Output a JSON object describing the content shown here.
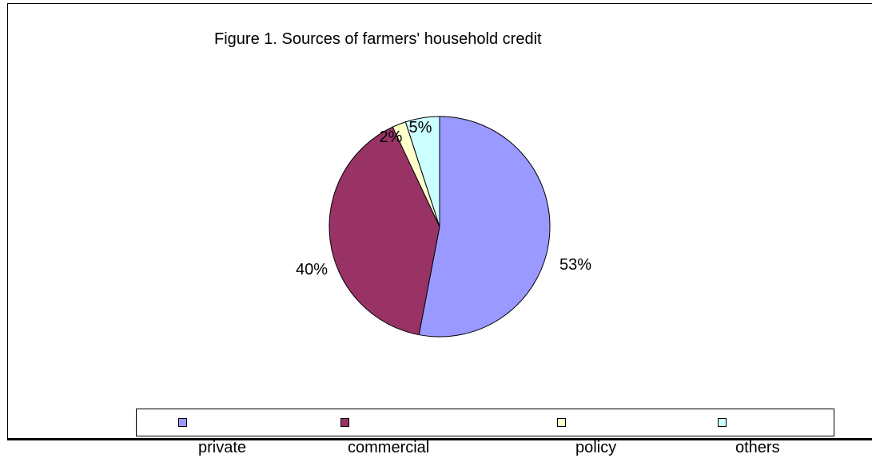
{
  "chart_data": {
    "type": "pie",
    "title": "Figure 1. Sources of farmers' household credit",
    "categories": [
      "private",
      "commercial",
      "policy",
      "others"
    ],
    "values": [
      53,
      40,
      2,
      5
    ],
    "data_labels": [
      "53%",
      "40%",
      "2%",
      "5%"
    ],
    "colors": [
      "#9999ff",
      "#993366",
      "#ffffcc",
      "#ccffff"
    ],
    "legend_position": "bottom"
  }
}
